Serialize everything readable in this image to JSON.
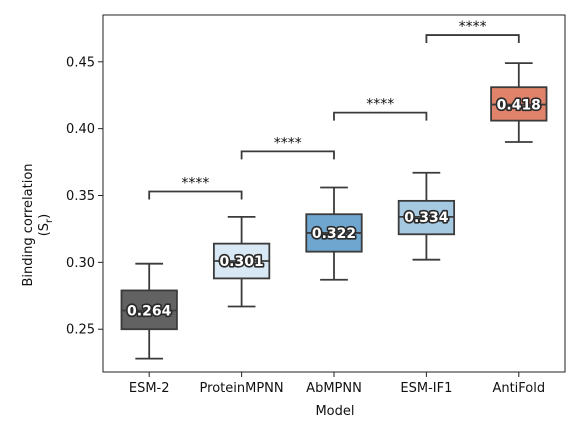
{
  "chart_data": {
    "type": "box",
    "xlabel": "Model",
    "ylabel_main": "Binding correlation",
    "ylabel_sub_base": "(S",
    "ylabel_sub_sub": "r",
    "ylabel_sub_end": ")",
    "ylim": [
      0.218,
      0.485
    ],
    "yticks": [
      "0.25",
      "0.30",
      "0.35",
      "0.40",
      "0.45"
    ],
    "ytick_values": [
      0.25,
      0.3,
      0.35,
      0.4,
      0.45
    ],
    "categories": [
      "ESM-2",
      "ProteinMPNN",
      "AbMPNN",
      "ESM-IF1",
      "AntiFold"
    ],
    "boxes": [
      {
        "name": "ESM-2",
        "whisker_low": 0.228,
        "q1": 0.25,
        "median": 0.264,
        "q3": 0.279,
        "whisker_high": 0.299,
        "label": "0.264",
        "color": "#626262"
      },
      {
        "name": "ProteinMPNN",
        "whisker_low": 0.267,
        "q1": 0.288,
        "median": 0.301,
        "q3": 0.314,
        "whisker_high": 0.334,
        "label": "0.301",
        "color": "#d9e8f5"
      },
      {
        "name": "AbMPNN",
        "whisker_low": 0.287,
        "q1": 0.308,
        "median": 0.322,
        "q3": 0.336,
        "whisker_high": 0.356,
        "label": "0.322",
        "color": "#6fa6d0"
      },
      {
        "name": "ESM-IF1",
        "whisker_low": 0.302,
        "q1": 0.321,
        "median": 0.334,
        "q3": 0.346,
        "whisker_high": 0.367,
        "label": "0.334",
        "color": "#a6c9e2"
      },
      {
        "name": "AntiFold",
        "whisker_low": 0.39,
        "q1": 0.406,
        "median": 0.418,
        "q3": 0.431,
        "whisker_high": 0.449,
        "label": "0.418",
        "color": "#e0836a"
      }
    ],
    "significance": [
      {
        "from": 0,
        "to": 1,
        "y": 0.353,
        "label": "****"
      },
      {
        "from": 1,
        "to": 2,
        "y": 0.383,
        "label": "****"
      },
      {
        "from": 2,
        "to": 3,
        "y": 0.412,
        "label": "****"
      },
      {
        "from": 3,
        "to": 4,
        "y": 0.47,
        "label": "****"
      }
    ],
    "grid": false
  }
}
